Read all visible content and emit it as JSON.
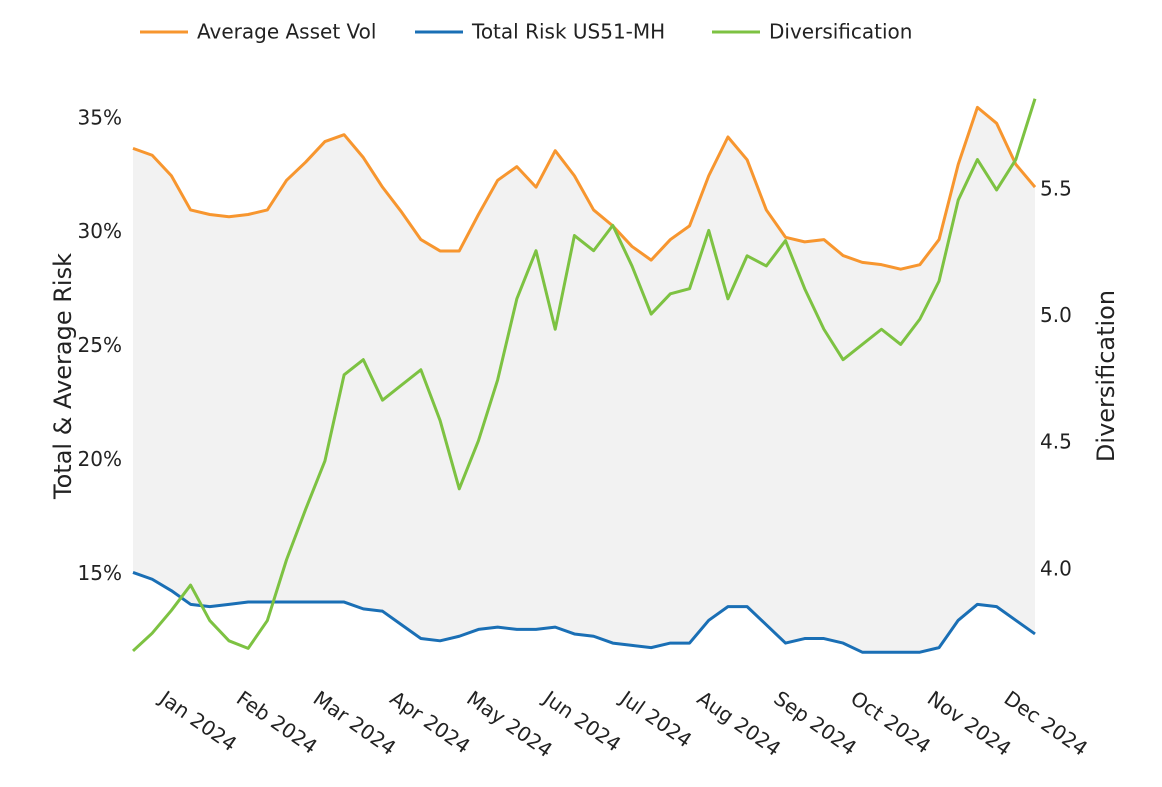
{
  "chart_data": {
    "type": "line",
    "categories": [
      null,
      null,
      "Jan 2024",
      null,
      null,
      null,
      "Feb 2024",
      null,
      null,
      null,
      "Mar 2024",
      null,
      null,
      null,
      "Apr 2024",
      null,
      null,
      null,
      "May 2024",
      null,
      null,
      null,
      "Jun 2024",
      null,
      null,
      null,
      "Jul 2024",
      null,
      null,
      null,
      "Aug 2024",
      null,
      null,
      null,
      "Sep 2024",
      null,
      null,
      null,
      "Oct 2024",
      null,
      null,
      null,
      "Nov 2024",
      null,
      null,
      null,
      "Dec 2024",
      null
    ],
    "series": [
      {
        "name": "Average Asset Vol",
        "color": "#f7962f",
        "values": [
          33.7,
          33.4,
          32.5,
          31.0,
          30.8,
          30.7,
          30.8,
          31.0,
          32.3,
          33.1,
          34.0,
          34.3,
          33.3,
          32.0,
          30.9,
          29.7,
          29.2,
          29.2,
          30.8,
          32.3,
          32.9,
          32.0,
          33.6,
          32.5,
          31.0,
          30.3,
          29.4,
          28.8,
          29.7,
          30.3,
          32.5,
          34.2,
          33.2,
          31.0,
          29.8,
          29.6,
          29.7,
          29.0,
          28.7,
          28.6,
          28.4,
          28.6,
          29.7,
          33.0,
          35.5,
          34.8,
          33.0,
          32.0
        ]
      },
      {
        "name": "Total Risk US51-MH",
        "color": "#1a6fb5",
        "values": [
          15.1,
          14.8,
          14.3,
          13.7,
          13.6,
          13.7,
          13.8,
          13.8,
          13.8,
          13.8,
          13.8,
          13.8,
          13.5,
          13.4,
          12.8,
          12.2,
          12.1,
          12.3,
          12.6,
          12.7,
          12.6,
          12.6,
          12.7,
          12.4,
          12.3,
          12.0,
          11.9,
          11.8,
          12.0,
          12.0,
          13.0,
          13.6,
          13.6,
          12.8,
          12.0,
          12.2,
          12.2,
          12.0,
          11.6,
          11.6,
          11.6,
          11.6,
          11.8,
          13.0,
          13.7,
          13.6,
          13.0,
          12.4
        ]
      },
      {
        "name": "Diversification",
        "color": "#7dc242",
        "axis": "y2",
        "values": [
          3.68,
          3.75,
          3.84,
          3.94,
          3.8,
          3.72,
          3.69,
          3.8,
          4.04,
          4.24,
          4.43,
          4.77,
          4.83,
          4.67,
          4.73,
          4.79,
          4.59,
          4.32,
          4.51,
          4.75,
          5.07,
          5.26,
          4.95,
          5.32,
          5.26,
          5.36,
          5.2,
          5.01,
          5.09,
          5.11,
          5.34,
          5.07,
          5.24,
          5.2,
          5.3,
          5.11,
          4.95,
          4.83,
          4.89,
          4.95,
          4.89,
          4.99,
          5.14,
          5.46,
          5.62,
          5.5,
          5.62,
          5.86
        ]
      }
    ],
    "ylabel": "Total & Average Risk",
    "y2label": "Diversification",
    "ylim": [
      10.6,
      36.7
    ],
    "yticks": [
      {
        "value": 15,
        "label": "15%"
      },
      {
        "value": 20,
        "label": "20%"
      },
      {
        "value": 25,
        "label": "25%"
      },
      {
        "value": 30,
        "label": "30%"
      },
      {
        "value": 35,
        "label": "35%"
      }
    ],
    "y2lim": [
      3.585,
      5.934
    ],
    "y2ticks": [
      {
        "value": 4,
        "label": "4.0"
      },
      4.5,
      {
        "value": 5,
        "label": "5.0"
      },
      5.5
    ],
    "legend": "top",
    "band_color": "#f2f2f2"
  }
}
